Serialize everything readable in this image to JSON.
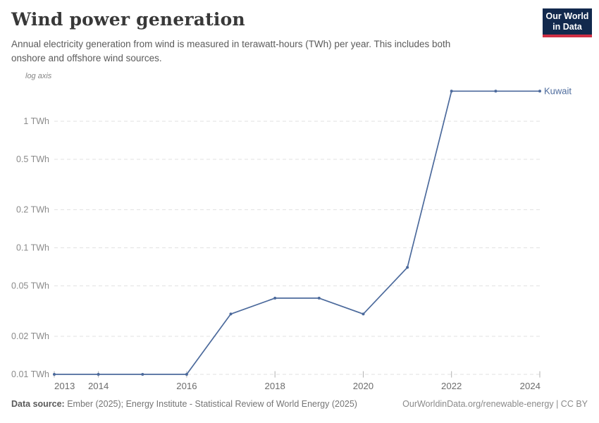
{
  "header": {
    "title": "Wind power generation",
    "subtitle_lines": [
      "Annual electricity generation from wind is measured in terawatt-hours (TWh) per year. This includes both",
      "onshore and offshore wind sources."
    ]
  },
  "logo": {
    "line1": "Our World",
    "line2": "in Data",
    "bg_color": "#12294d",
    "accent_color": "#cf2f44"
  },
  "chart": {
    "axis_note": "log axis",
    "entity_label": "Kuwait",
    "line_color": "#4c6a9c",
    "grid_color": "#e2e2e2",
    "tick_mark_color": "#b0b0b0",
    "ytick_label_color": "#8b8b8b",
    "xtick_label_color": "#6d6d6d"
  },
  "chart_data": {
    "type": "line",
    "title": "Wind power generation",
    "subtitle": "Annual electricity generation from wind is measured in terawatt-hours (TWh) per year. This includes both onshore and offshore wind sources.",
    "unit": "TWh",
    "yscale": "log",
    "ylim": [
      0.01,
      1.8
    ],
    "x": [
      2013,
      2014,
      2015,
      2016,
      2017,
      2018,
      2019,
      2020,
      2021,
      2022,
      2023,
      2024
    ],
    "series": [
      {
        "name": "Kuwait",
        "color": "#4c6a9c",
        "values": [
          0.01,
          0.01,
          0.01,
          0.01,
          0.03,
          0.04,
          0.04,
          0.03,
          0.07,
          1.73,
          1.73,
          1.73
        ]
      }
    ],
    "yticks": [
      {
        "value": 1,
        "label": "1 TWh"
      },
      {
        "value": 0.5,
        "label": "0.5 TWh"
      },
      {
        "value": 0.2,
        "label": "0.2 TWh"
      },
      {
        "value": 0.1,
        "label": "0.1 TWh"
      },
      {
        "value": 0.05,
        "label": "0.05 TWh"
      },
      {
        "value": 0.02,
        "label": "0.02 TWh"
      },
      {
        "value": 0.01,
        "label": "0.01 TWh"
      }
    ],
    "xticks": [
      2013,
      2014,
      2016,
      2018,
      2020,
      2022,
      2024
    ],
    "grid": "horizontal-dashed",
    "legend_position": "end-of-line"
  },
  "footer": {
    "datasource_label": "Data source:",
    "datasource_value": " Ember (2025); Energy Institute - Statistical Review of World Energy (2025)",
    "rights": "OurWorldinData.org/renewable-energy | CC BY"
  }
}
